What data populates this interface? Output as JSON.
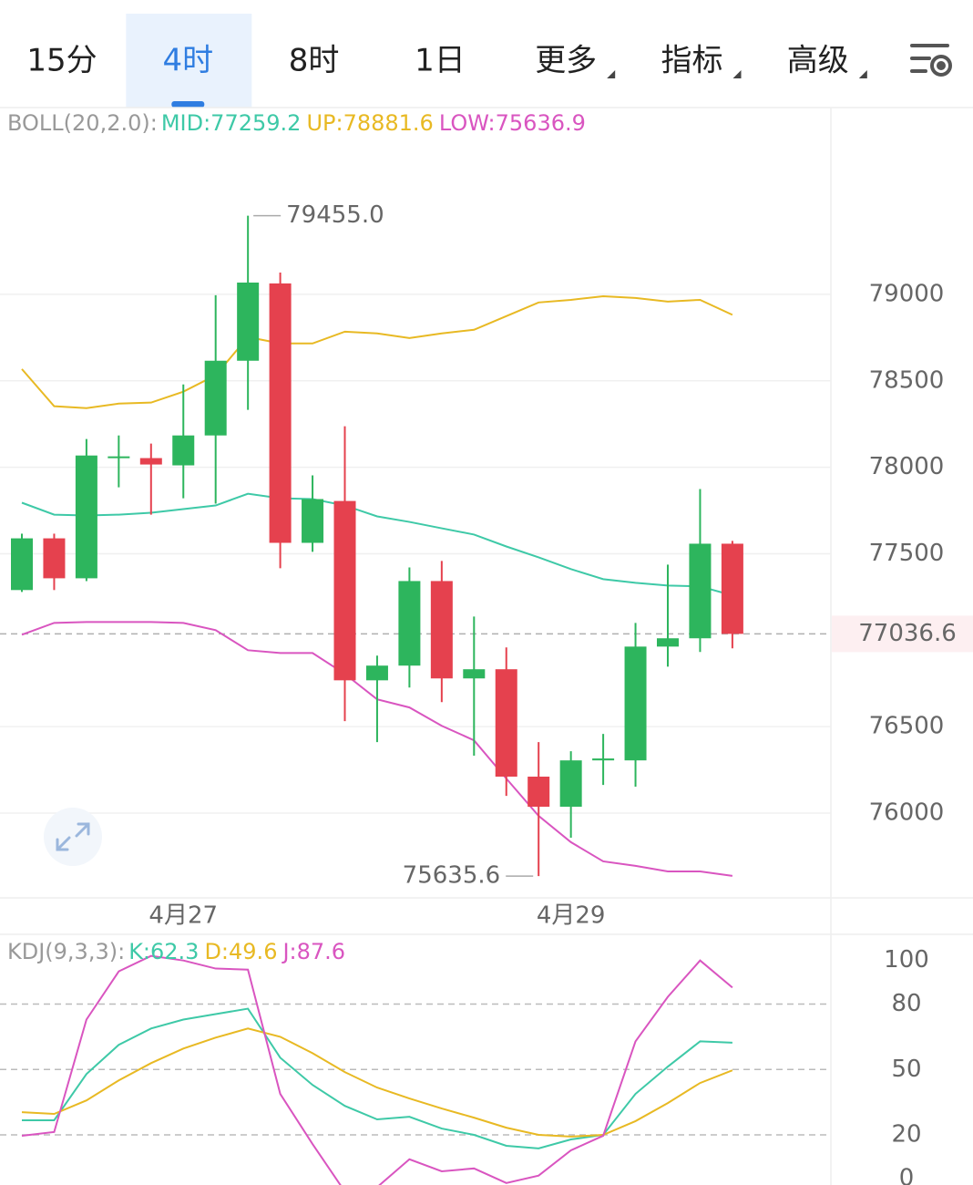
{
  "tabs": [
    {
      "label": "15分",
      "dropdown": false
    },
    {
      "label": "4时",
      "dropdown": false,
      "active": true
    },
    {
      "label": "8时",
      "dropdown": false
    },
    {
      "label": "1日",
      "dropdown": false
    },
    {
      "label": "更多",
      "dropdown": true
    },
    {
      "label": "指标",
      "dropdown": true
    },
    {
      "label": "高级",
      "dropdown": true
    }
  ],
  "chart_data": [
    {
      "type": "candlestick",
      "title": "BOLL(20,2.0):",
      "categories": [
        null,
        null,
        null,
        null,
        null,
        "4月27",
        null,
        null,
        null,
        null,
        null,
        null,
        null,
        null,
        null,
        null,
        null,
        "4月29",
        null,
        null,
        null,
        null,
        null
      ],
      "open": [
        77290,
        77589,
        77358,
        78053,
        78053,
        78011,
        78184,
        78616,
        79063,
        77563,
        77805,
        76768,
        76853,
        77342,
        76779,
        76832,
        76211,
        76037,
        76305,
        76305,
        76963,
        77011,
        77558
      ],
      "high": [
        77616,
        77616,
        78163,
        78184,
        78137,
        78479,
        78995,
        79455,
        79126,
        77953,
        78237,
        76911,
        77421,
        77458,
        77137,
        76958,
        76411,
        76358,
        76458,
        77100,
        77437,
        77874,
        77574
      ],
      "low": [
        77279,
        77290,
        77342,
        77884,
        77726,
        77821,
        77790,
        78332,
        77416,
        77511,
        76532,
        76411,
        76726,
        76642,
        76332,
        76100,
        75635.6,
        75858,
        76163,
        76153,
        76847,
        76932,
        76953
      ],
      "close": [
        77589,
        77358,
        78068,
        78063,
        78016,
        78184,
        78616,
        79068,
        77563,
        77816,
        76768,
        76853,
        77342,
        76779,
        76832,
        76211,
        76037,
        76305,
        76316,
        76963,
        77011,
        77558,
        77036.6
      ],
      "up_color": "#2db55d",
      "down_color": "#e5414e",
      "series": [
        {
          "name": "MID",
          "legend_label": "MID:77259.2",
          "color": "#3ec9a7",
          "values": [
            77795,
            77726,
            77721,
            77726,
            77737,
            77758,
            77779,
            77847,
            77821,
            77816,
            77779,
            77716,
            77684,
            77647,
            77611,
            77542,
            77479,
            77411,
            77353,
            77332,
            77316,
            77311,
            77259.2
          ]
        },
        {
          "name": "UP",
          "legend_label": "UP:78881.6",
          "color": "#e8b923",
          "values": [
            78568,
            78353,
            78342,
            78368,
            78374,
            78437,
            78532,
            78753,
            78716,
            78716,
            78784,
            78774,
            78747,
            78774,
            78795,
            78874,
            78953,
            78968,
            78989,
            78979,
            78958,
            78968,
            78881.6
          ]
        },
        {
          "name": "LOW",
          "legend_label": "LOW:75636.9",
          "color": "#d955c0",
          "values": [
            77032,
            77100,
            77105,
            77105,
            77105,
            77100,
            77058,
            76942,
            76926,
            76926,
            76805,
            76658,
            76611,
            76505,
            76421,
            76200,
            75984,
            75832,
            75721,
            75695,
            75663,
            75663,
            75636.9
          ]
        }
      ],
      "ylim": [
        75510,
        80080
      ],
      "yticks": [
        76000,
        76500,
        77500,
        78000,
        78500,
        79000
      ],
      "grid": true,
      "last_price": 77036.6,
      "last_price_color": "#e5414e",
      "high_label": "79455.0",
      "low_label": "75635.6"
    },
    {
      "type": "line",
      "title": "KDJ(9,3,3):",
      "series": [
        {
          "name": "K",
          "legend_label": "K:62.3",
          "color": "#3ec9a7",
          "values": [
            26.7,
            26.7,
            47.9,
            61.3,
            68.8,
            72.9,
            75.4,
            77.9,
            55.4,
            42.9,
            33.3,
            27.1,
            28.3,
            22.9,
            20.0,
            15.0,
            13.8,
            17.9,
            20.0,
            38.8,
            51.3,
            62.9,
            62.3
          ]
        },
        {
          "name": "D",
          "legend_label": "D:49.6",
          "color": "#e8b923",
          "values": [
            30.4,
            29.6,
            35.8,
            45.0,
            52.9,
            59.6,
            64.6,
            68.8,
            65.0,
            57.5,
            48.8,
            41.7,
            36.7,
            32.1,
            27.9,
            23.3,
            20.0,
            19.2,
            20.0,
            26.3,
            34.6,
            43.8,
            49.6
          ]
        },
        {
          "name": "J",
          "legend_label": "J:87.6",
          "color": "#d955c0",
          "values": [
            19.6,
            21.3,
            72.9,
            95.0,
            102.1,
            100.0,
            96.3,
            95.8,
            38.8,
            15.8,
            -6,
            -4,
            8.8,
            3.3,
            4.6,
            -2.1,
            1.3,
            12.9,
            19.6,
            62.9,
            83.3,
            100.0,
            87.6
          ]
        }
      ],
      "ylim": [
        -3,
        112
      ],
      "yticks": [
        0,
        20,
        50,
        80,
        100
      ],
      "grid": true
    }
  ]
}
